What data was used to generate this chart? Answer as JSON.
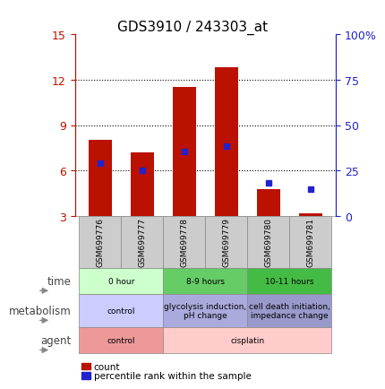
{
  "title": "GDS3910 / 243303_at",
  "categories": [
    "GSM699776",
    "GSM699777",
    "GSM699778",
    "GSM699779",
    "GSM699780",
    "GSM699781"
  ],
  "bar_heights": [
    8.0,
    7.2,
    11.5,
    12.8,
    4.8,
    3.2
  ],
  "bar_base": 3.0,
  "bar_color": "#bb1100",
  "blue_marker_values": [
    6.5,
    6.0,
    7.25,
    7.6,
    5.2,
    4.75
  ],
  "blue_marker_color": "#2222cc",
  "ylim_left": [
    3,
    15
  ],
  "ylim_right": [
    0,
    100
  ],
  "yticks_left": [
    3,
    6,
    9,
    12,
    15
  ],
  "yticks_right": [
    0,
    25,
    50,
    75,
    100
  ],
  "ytick_labels_right": [
    "0",
    "25",
    "50",
    "75",
    "100%"
  ],
  "dotted_lines": [
    6,
    9,
    12
  ],
  "time_groups": [
    {
      "label": "0 hour",
      "span": [
        0,
        2
      ],
      "color": "#ccffcc"
    },
    {
      "label": "8-9 hours",
      "span": [
        2,
        4
      ],
      "color": "#66cc66"
    },
    {
      "label": "10-11 hours",
      "span": [
        4,
        6
      ],
      "color": "#44bb44"
    }
  ],
  "metabolism_groups": [
    {
      "label": "control",
      "span": [
        0,
        2
      ],
      "color": "#ccccff"
    },
    {
      "label": "glycolysis induction,\npH change",
      "span": [
        2,
        4
      ],
      "color": "#aaaadd"
    },
    {
      "label": "cell death initiation,\nimpedance change",
      "span": [
        4,
        6
      ],
      "color": "#9999cc"
    }
  ],
  "agent_groups": [
    {
      "label": "control",
      "span": [
        0,
        2
      ],
      "color": "#ee9999"
    },
    {
      "label": "cisplatin",
      "span": [
        2,
        6
      ],
      "color": "#ffcccc"
    }
  ],
  "legend_count_color": "#bb1100",
  "legend_percentile_color": "#2222cc",
  "row_labels": [
    "time",
    "metabolism",
    "agent"
  ],
  "row_label_color": "#444444",
  "background_color": "#ffffff",
  "plot_bg_color": "#ffffff",
  "bar_width": 0.55,
  "sample_box_color": "#cccccc",
  "sample_box_edge": "#888888"
}
